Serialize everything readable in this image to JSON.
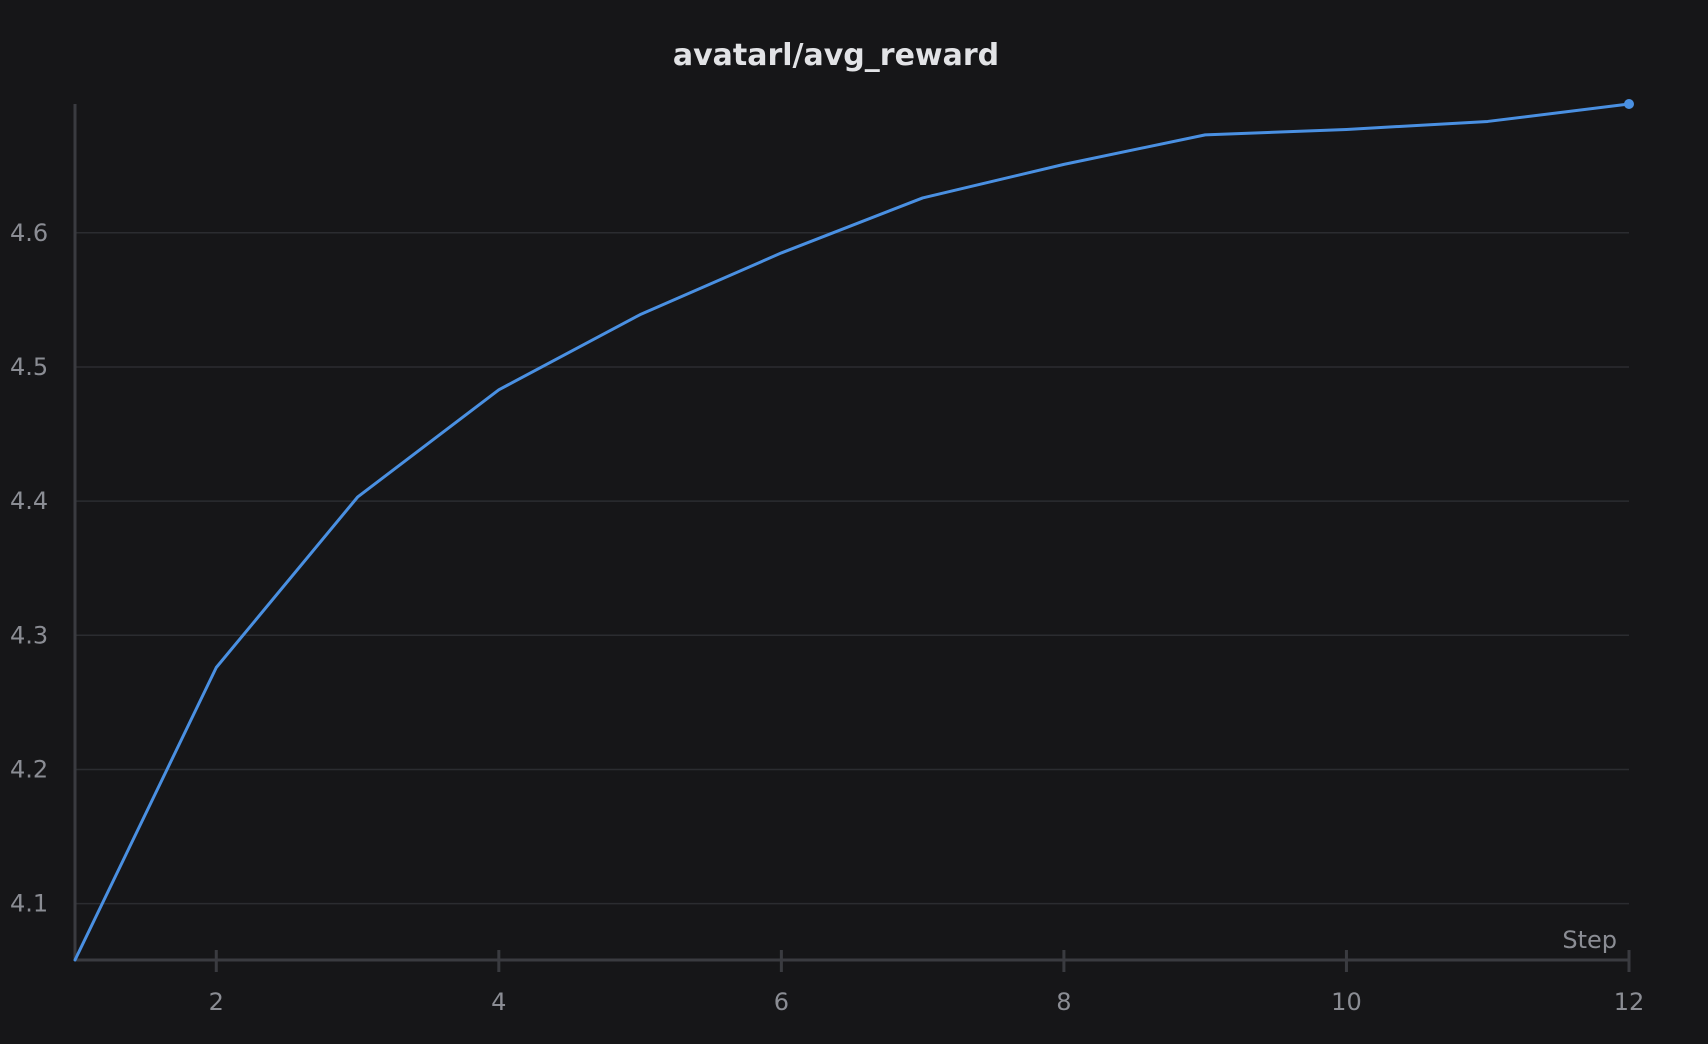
{
  "chart_data": {
    "type": "line",
    "title": "avatarl/avg_reward",
    "xlabel": "Step",
    "ylabel": "",
    "x": [
      1,
      2,
      3,
      4,
      5,
      6,
      7,
      8,
      9,
      10,
      11,
      12
    ],
    "series": [
      {
        "values": [
          4.058,
          4.276,
          4.403,
          4.483,
          4.539,
          4.585,
          4.626,
          4.651,
          4.673,
          4.677,
          4.683,
          4.696
        ],
        "color": "#4a90e2"
      }
    ],
    "xticks": [
      2,
      4,
      6,
      8,
      10,
      12
    ],
    "yticks": [
      4.1,
      4.2,
      4.3,
      4.4,
      4.5,
      4.6
    ],
    "xlim": [
      1,
      12
    ],
    "ylim": [
      4.058,
      4.696
    ],
    "grid": "horizontal",
    "colors": {
      "background": "#161618",
      "grid": "#2b2c30",
      "axis": "#3a3b40",
      "text": "#8b8d94",
      "title": "#e2e3e6",
      "line": "#4a90e2"
    }
  }
}
